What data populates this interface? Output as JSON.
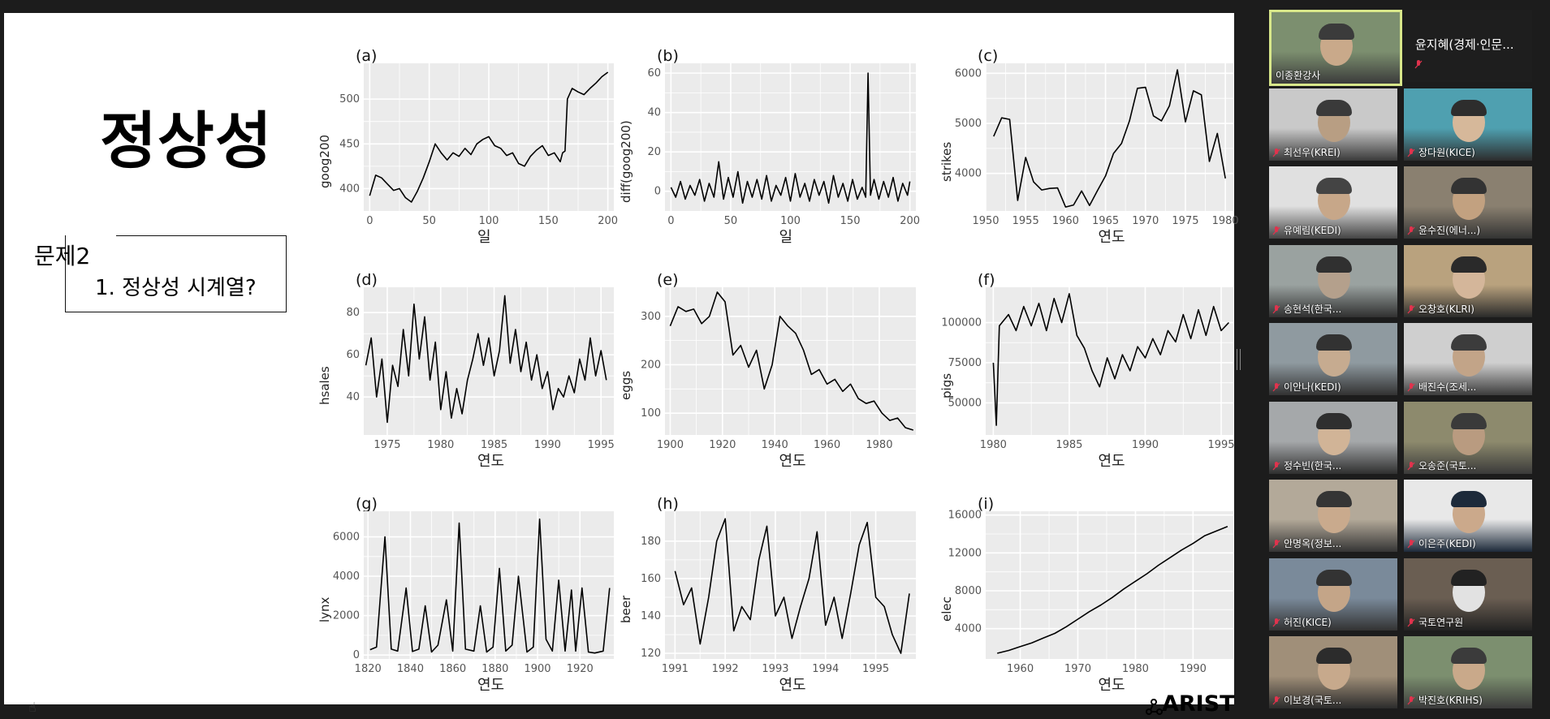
{
  "slide": {
    "title": "정상성",
    "problem_label": "문제2",
    "question": "1. 정상성 시계열?",
    "brand": "ARIST"
  },
  "panels": [
    {
      "letter": "(a)",
      "ylabel": "goog200",
      "xlabel": "일"
    },
    {
      "letter": "(b)",
      "ylabel": "diff(goog200)",
      "xlabel": "일"
    },
    {
      "letter": "(c)",
      "ylabel": "strikes",
      "xlabel": "연도"
    },
    {
      "letter": "(d)",
      "ylabel": "hsales",
      "xlabel": "연도"
    },
    {
      "letter": "(e)",
      "ylabel": "eggs",
      "xlabel": "연도"
    },
    {
      "letter": "(f)",
      "ylabel": "pigs",
      "xlabel": "연도"
    },
    {
      "letter": "(g)",
      "ylabel": "lynx",
      "xlabel": "연도"
    },
    {
      "letter": "(h)",
      "ylabel": "beer",
      "xlabel": "연도"
    },
    {
      "letter": "(i)",
      "ylabel": "elec",
      "xlabel": "연도"
    }
  ],
  "chart_data": [
    {
      "type": "line",
      "title": "(a)",
      "xlabel": "일",
      "ylabel": "goog200",
      "xlim": [
        -5,
        205
      ],
      "ylim": [
        375,
        540
      ],
      "xticks": [
        0,
        50,
        100,
        150,
        200
      ],
      "yticks": [
        400,
        450,
        500
      ],
      "x": [
        0,
        5,
        10,
        15,
        20,
        25,
        30,
        35,
        40,
        45,
        50,
        55,
        60,
        65,
        70,
        75,
        80,
        85,
        90,
        95,
        100,
        105,
        110,
        115,
        120,
        125,
        130,
        135,
        140,
        145,
        150,
        155,
        160,
        162,
        164,
        166,
        170,
        175,
        180,
        185,
        190,
        195,
        200
      ],
      "y": [
        392,
        415,
        412,
        405,
        398,
        400,
        390,
        385,
        397,
        412,
        430,
        450,
        440,
        432,
        440,
        436,
        445,
        438,
        450,
        455,
        458,
        448,
        445,
        437,
        440,
        428,
        425,
        436,
        443,
        448,
        437,
        440,
        430,
        440,
        442,
        500,
        512,
        508,
        505,
        512,
        518,
        525,
        530
      ]
    },
    {
      "type": "line",
      "title": "(b)",
      "xlabel": "일",
      "ylabel": "diff(goog200)",
      "xlim": [
        -5,
        205
      ],
      "ylim": [
        -10,
        65
      ],
      "xticks": [
        0,
        50,
        100,
        150,
        200
      ],
      "yticks": [
        0,
        20,
        40,
        60
      ],
      "x": [
        0,
        4,
        8,
        12,
        16,
        20,
        24,
        28,
        32,
        36,
        40,
        44,
        48,
        52,
        56,
        60,
        64,
        68,
        72,
        76,
        80,
        84,
        88,
        92,
        96,
        100,
        104,
        108,
        112,
        116,
        120,
        124,
        128,
        132,
        136,
        140,
        144,
        148,
        152,
        156,
        160,
        163,
        165,
        167,
        170,
        174,
        178,
        182,
        186,
        190,
        194,
        198,
        200
      ],
      "y": [
        2,
        -3,
        5,
        -4,
        3,
        -2,
        6,
        -5,
        4,
        -3,
        15,
        -4,
        7,
        -3,
        10,
        -6,
        5,
        -3,
        6,
        -4,
        8,
        -5,
        3,
        -2,
        7,
        -5,
        9,
        -3,
        4,
        -5,
        6,
        -2,
        5,
        -6,
        8,
        -3,
        4,
        -5,
        6,
        -4,
        2,
        -3,
        60,
        -2,
        6,
        -4,
        5,
        -3,
        7,
        -5,
        4,
        -2,
        5
      ]
    },
    {
      "type": "line",
      "title": "(c)",
      "xlabel": "연도",
      "ylabel": "strikes",
      "xlim": [
        1950,
        1981
      ],
      "ylim": [
        3250,
        6200
      ],
      "xticks": [
        1950,
        1955,
        1960,
        1965,
        1970,
        1975,
        1980
      ],
      "yticks": [
        4000,
        5000,
        6000
      ],
      "x": [
        1951,
        1952,
        1953,
        1954,
        1955,
        1956,
        1957,
        1958,
        1959,
        1960,
        1961,
        1962,
        1963,
        1964,
        1965,
        1966,
        1967,
        1968,
        1969,
        1970,
        1971,
        1972,
        1973,
        1974,
        1975,
        1976,
        1977,
        1978,
        1979,
        1980
      ],
      "y": [
        4740,
        5110,
        5080,
        3460,
        4320,
        3830,
        3670,
        3700,
        3710,
        3330,
        3370,
        3650,
        3360,
        3660,
        3950,
        4400,
        4600,
        5050,
        5700,
        5720,
        5150,
        5050,
        5350,
        6070,
        5030,
        5650,
        5570,
        4240,
        4800,
        3900
      ]
    },
    {
      "type": "line",
      "title": "(d)",
      "xlabel": "연도",
      "ylabel": "hsales",
      "xlim": [
        1972.8,
        1996.2
      ],
      "ylim": [
        22,
        92
      ],
      "xticks": [
        1975,
        1980,
        1985,
        1990,
        1995
      ],
      "yticks": [
        40,
        60,
        80
      ],
      "x": [
        1973,
        1973.5,
        1974,
        1974.5,
        1975,
        1975.5,
        1976,
        1976.5,
        1977,
        1977.5,
        1978,
        1978.5,
        1979,
        1979.5,
        1980,
        1980.5,
        1981,
        1981.5,
        1982,
        1982.5,
        1983,
        1983.5,
        1984,
        1984.5,
        1985,
        1985.5,
        1986,
        1986.5,
        1987,
        1987.5,
        1988,
        1988.5,
        1989,
        1989.5,
        1990,
        1990.5,
        1991,
        1991.5,
        1992,
        1992.5,
        1993,
        1993.5,
        1994,
        1994.5,
        1995,
        1995.5
      ],
      "y": [
        55,
        68,
        40,
        58,
        28,
        55,
        45,
        72,
        50,
        84,
        58,
        78,
        48,
        66,
        34,
        52,
        30,
        44,
        32,
        48,
        58,
        70,
        55,
        68,
        50,
        62,
        88,
        56,
        72,
        52,
        66,
        48,
        60,
        44,
        52,
        34,
        44,
        40,
        50,
        42,
        58,
        48,
        68,
        50,
        62,
        48
      ]
    },
    {
      "type": "line",
      "title": "(e)",
      "xlabel": "연도",
      "ylabel": "eggs",
      "xlim": [
        1898,
        1994
      ],
      "ylim": [
        55,
        360
      ],
      "xticks": [
        1900,
        1920,
        1940,
        1960,
        1980
      ],
      "yticks": [
        100,
        200,
        300
      ],
      "x": [
        1900,
        1903,
        1906,
        1909,
        1912,
        1915,
        1918,
        1921,
        1924,
        1927,
        1930,
        1933,
        1936,
        1939,
        1942,
        1945,
        1948,
        1951,
        1954,
        1957,
        1960,
        1963,
        1966,
        1969,
        1972,
        1975,
        1978,
        1981,
        1984,
        1987,
        1990,
        1993
      ],
      "y": [
        280,
        320,
        310,
        315,
        285,
        300,
        350,
        330,
        220,
        240,
        195,
        230,
        150,
        200,
        300,
        280,
        265,
        230,
        180,
        190,
        160,
        170,
        145,
        160,
        130,
        120,
        125,
        100,
        85,
        90,
        70,
        65
      ]
    },
    {
      "type": "line",
      "title": "(f)",
      "xlabel": "연도",
      "ylabel": "pigs",
      "xlim": [
        1979.5,
        1995.8
      ],
      "ylim": [
        30000,
        122000
      ],
      "xticks": [
        1980,
        1985,
        1990,
        1995
      ],
      "yticks": [
        50000,
        75000,
        100000
      ],
      "x": [
        1980,
        1980.2,
        1980.4,
        1981,
        1981.5,
        1982,
        1982.5,
        1983,
        1983.5,
        1984,
        1984.5,
        1985,
        1985.5,
        1986,
        1986.5,
        1987,
        1987.5,
        1988,
        1988.5,
        1989,
        1989.5,
        1990,
        1990.5,
        1991,
        1991.5,
        1992,
        1992.5,
        1993,
        1993.5,
        1994,
        1994.5,
        1995,
        1995.5
      ],
      "y": [
        75000,
        36000,
        98000,
        105000,
        95000,
        110000,
        98000,
        112000,
        95000,
        115000,
        100000,
        118000,
        92000,
        84000,
        70000,
        60000,
        78000,
        65000,
        80000,
        70000,
        85000,
        78000,
        90000,
        80000,
        95000,
        88000,
        105000,
        90000,
        108000,
        92000,
        110000,
        95000,
        100000
      ]
    },
    {
      "type": "line",
      "title": "(g)",
      "xlabel": "연도",
      "ylabel": "lynx",
      "xlim": [
        1818,
        1936
      ],
      "ylim": [
        -200,
        7300
      ],
      "xticks": [
        1820,
        1840,
        1860,
        1880,
        1900,
        1920
      ],
      "yticks": [
        0,
        2000,
        4000,
        6000
      ],
      "x": [
        1821,
        1824,
        1828,
        1831,
        1834,
        1838,
        1841,
        1844,
        1847,
        1850,
        1853,
        1857,
        1860,
        1863,
        1866,
        1870,
        1873,
        1876,
        1879,
        1882,
        1885,
        1888,
        1891,
        1895,
        1898,
        1901,
        1904,
        1907,
        1910,
        1913,
        1916,
        1918,
        1921,
        1924,
        1927,
        1931,
        1934
      ],
      "y": [
        270,
        400,
        6000,
        300,
        200,
        3400,
        180,
        300,
        2500,
        150,
        500,
        2800,
        200,
        6700,
        300,
        200,
        2500,
        150,
        400,
        4400,
        200,
        500,
        4000,
        150,
        400,
        6900,
        800,
        200,
        3800,
        200,
        3300,
        200,
        3400,
        150,
        100,
        200,
        3400
      ]
    },
    {
      "type": "line",
      "title": "(h)",
      "xlabel": "연도",
      "ylabel": "beer",
      "xlim": [
        1990.8,
        1995.8
      ],
      "ylim": [
        117,
        196
      ],
      "xticks": [
        1991,
        1992,
        1993,
        1994,
        1995
      ],
      "yticks": [
        120,
        140,
        160,
        180
      ],
      "x": [
        1991,
        1991.17,
        1991.33,
        1991.5,
        1991.67,
        1991.83,
        1992,
        1992.17,
        1992.33,
        1992.5,
        1992.67,
        1992.83,
        1993,
        1993.17,
        1993.33,
        1993.5,
        1993.67,
        1993.83,
        1994,
        1994.17,
        1994.33,
        1994.5,
        1994.67,
        1994.83,
        1995,
        1995.17,
        1995.33,
        1995.5,
        1995.67
      ],
      "y": [
        164,
        146,
        155,
        125,
        150,
        180,
        192,
        132,
        145,
        138,
        170,
        188,
        140,
        150,
        128,
        145,
        160,
        185,
        135,
        150,
        128,
        152,
        178,
        190,
        150,
        145,
        130,
        120,
        152
      ]
    },
    {
      "type": "line",
      "title": "(i)",
      "xlabel": "연도",
      "ylabel": "elec",
      "xlim": [
        1954,
        1997
      ],
      "ylim": [
        800,
        16400
      ],
      "xticks": [
        1960,
        1970,
        1980,
        1990
      ],
      "yticks": [
        4000,
        8000,
        12000,
        16000
      ],
      "x": [
        1956,
        1958,
        1960,
        1962,
        1964,
        1966,
        1968,
        1970,
        1972,
        1974,
        1976,
        1978,
        1980,
        1982,
        1984,
        1986,
        1988,
        1990,
        1992,
        1994,
        1996
      ],
      "y": [
        1400,
        1700,
        2100,
        2500,
        3000,
        3500,
        4200,
        5000,
        5800,
        6500,
        7300,
        8200,
        9000,
        9800,
        10700,
        11500,
        12300,
        13000,
        13800,
        14300,
        14800
      ]
    }
  ],
  "participants": [
    {
      "name": "이종환강사",
      "active": true
    },
    {
      "name": "윤지혜(경제·인문...",
      "plain": true
    },
    {
      "name": "최선우(KREI)"
    },
    {
      "name": "장다원(KICE)"
    },
    {
      "name": "유예림(KEDI)"
    },
    {
      "name": "윤수진(에너...)"
    },
    {
      "name": "송현석(한국..."
    },
    {
      "name": "오창호(KLRI)"
    },
    {
      "name": "이안나(KEDI)"
    },
    {
      "name": "배진수(조세..."
    },
    {
      "name": "정수빈(한국..."
    },
    {
      "name": "오송준(국토..."
    },
    {
      "name": "안명옥(정보..."
    },
    {
      "name": "이은주(KEDI)"
    },
    {
      "name": "허진(KICE)"
    },
    {
      "name": "국토연구원"
    },
    {
      "name": "이보경(국토..."
    },
    {
      "name": "박진호(KRIHS)"
    }
  ],
  "colors": {
    "slide_bg": "#ffffff",
    "plot_bg": "#ebebeb",
    "grid": "#ffffff",
    "line": "#000000",
    "sidebar_bg": "#1c1c1c",
    "active_border": "#d8e78a",
    "mute_red": "#e0334d"
  }
}
